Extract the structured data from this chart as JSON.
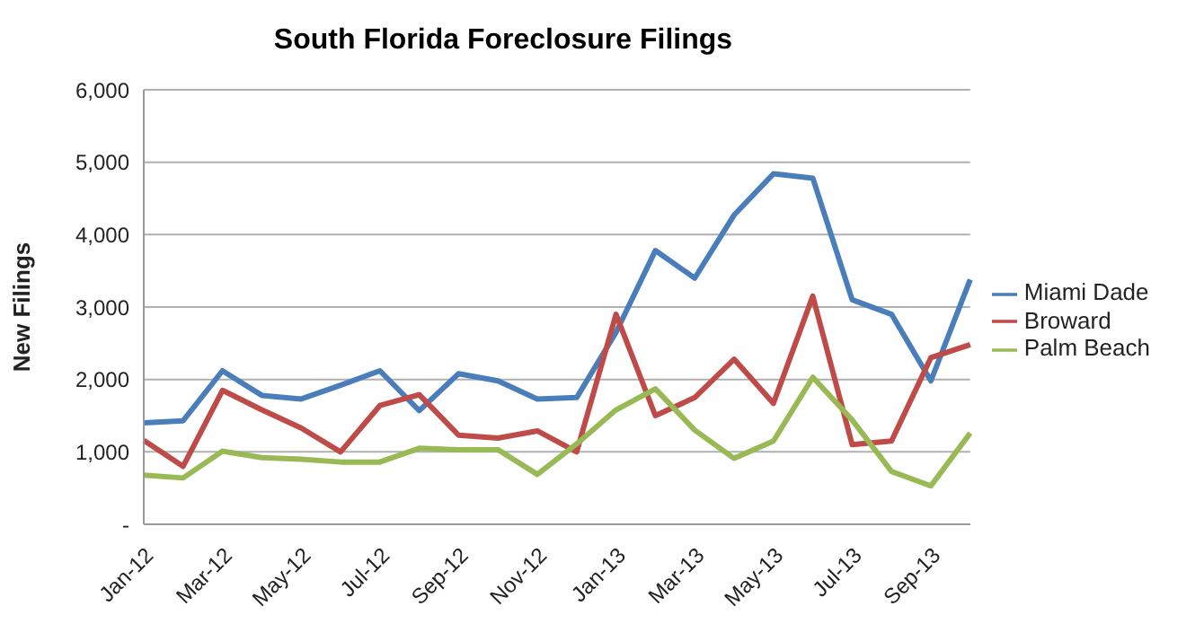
{
  "chart_data": {
    "type": "line",
    "title": "South Florida Foreclosure Filings",
    "ylabel": "New Filings",
    "categories": [
      "Jan-12",
      null,
      "Mar-12",
      null,
      "May-12",
      null,
      "Jul-12",
      null,
      "Sep-12",
      null,
      "Nov-12",
      null,
      "Jan-13",
      null,
      "Mar-13",
      null,
      "May-13",
      null,
      "Jul-13",
      null,
      "Sep-13",
      null
    ],
    "series": [
      {
        "name": "Miami Dade",
        "color": "#4a7ebb",
        "values": [
          1400,
          1430,
          2120,
          1780,
          1730,
          1920,
          2120,
          1570,
          2080,
          1980,
          1730,
          1750,
          2650,
          3780,
          3400,
          4270,
          4840,
          4780,
          3100,
          2900,
          1980,
          3380
        ]
      },
      {
        "name": "Broward",
        "color": "#be4b48",
        "values": [
          1160,
          800,
          1850,
          1580,
          1330,
          1000,
          1640,
          1790,
          1230,
          1190,
          1290,
          1000,
          2900,
          1500,
          1750,
          2280,
          1670,
          3150,
          1100,
          1150,
          2300,
          2480
        ]
      },
      {
        "name": "Palm Beach",
        "color": "#98b954",
        "values": [
          680,
          640,
          1010,
          920,
          900,
          860,
          860,
          1050,
          1030,
          1030,
          690,
          1110,
          1580,
          1870,
          1300,
          910,
          1150,
          2030,
          1440,
          730,
          530,
          1260
        ]
      }
    ],
    "ylim": [
      0,
      6000
    ],
    "yticks": [
      {
        "value": 0,
        "label": "-"
      },
      {
        "value": 1000,
        "label": "1,000"
      },
      {
        "value": 2000,
        "label": "2,000"
      },
      {
        "value": 3000,
        "label": "3,000"
      },
      {
        "value": 4000,
        "label": "4,000"
      },
      {
        "value": 5000,
        "label": "5,000"
      },
      {
        "value": 6000,
        "label": "6,000"
      }
    ],
    "grid": "y",
    "legend": "right",
    "marker": "none",
    "line_style": "solid"
  }
}
